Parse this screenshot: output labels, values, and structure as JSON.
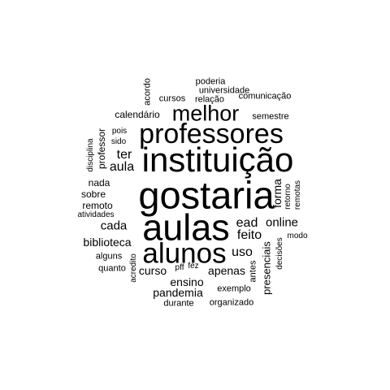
{
  "word_cloud": {
    "text_color": "#000000",
    "background_color": "#ffffff",
    "words": {
      "gostaria": "gostaria",
      "aulas": "aulas",
      "instituicao": "instituição",
      "alunos": "alunos",
      "professores": "professores",
      "melhor": "melhor",
      "ead": "ead",
      "feito": "feito",
      "online": "online",
      "uso": "uso",
      "aula": "aula",
      "ter": "ter",
      "cada": "cada",
      "curso": "curso",
      "apenas": "apenas",
      "biblioteca": "biblioteca",
      "pandemia": "pandemia",
      "ensino": "ensino",
      "forma": "forma",
      "presenciais": "presenciais",
      "nada": "nada",
      "sobre": "sobre",
      "remoto": "remoto",
      "calendario": "calendário",
      "professor": "professor",
      "atividades": "atividades",
      "disciplina": "disciplina",
      "pois": "pois",
      "sido": "sido",
      "semestre": "semestre",
      "acordo": "acordo",
      "cursos": "cursos",
      "relacao": "relação",
      "poderia": "poderia",
      "universidade": "universidade",
      "comunicacao": "comunicação",
      "retorno": "retorno",
      "remotas": "remotas",
      "modo": "modo",
      "decisoes": "decisões",
      "antes": "antes",
      "exemplo": "exemplo",
      "organizado": "organizado",
      "durante": "durante",
      "pff": "pff",
      "fez": "fez",
      "acredito": "acredito",
      "quanto": "quanto",
      "alguns": "alguns"
    }
  }
}
